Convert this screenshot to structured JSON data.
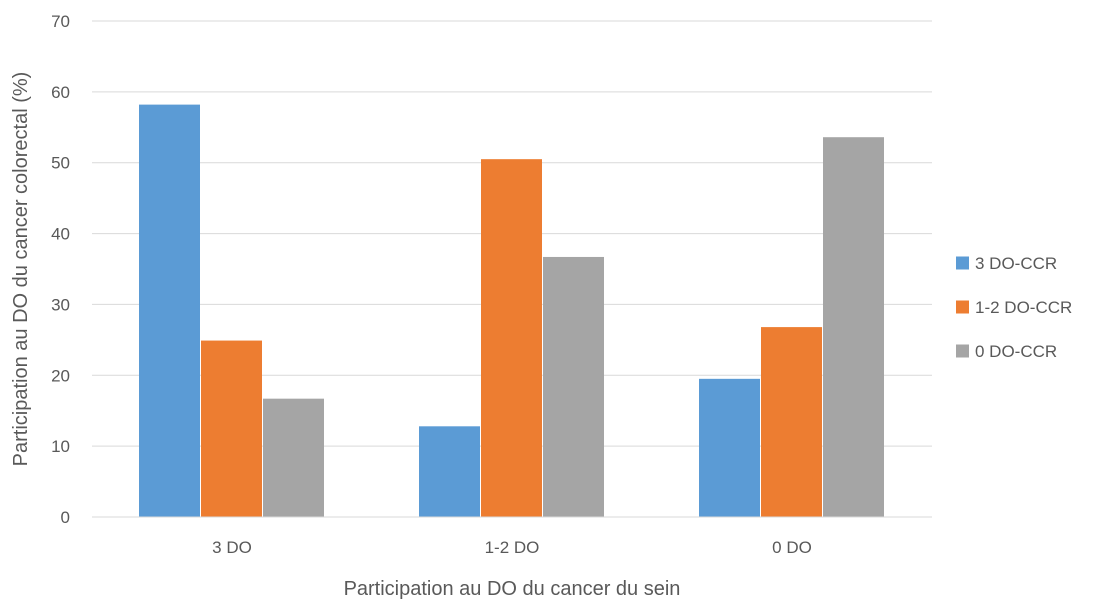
{
  "chart_data": {
    "type": "bar",
    "title": "",
    "xlabel": "Participation au DO du cancer du sein",
    "ylabel": "Participation au DO du cancer colorectal (%)",
    "categories": [
      "3 DO",
      "1-2 DO",
      "0 DO"
    ],
    "series": [
      {
        "name": "3 DO-CCR",
        "color": "#5b9bd5",
        "values": [
          58.2,
          12.8,
          19.5
        ]
      },
      {
        "name": "1-2 DO-CCR",
        "color": "#ed7d31",
        "values": [
          24.9,
          50.5,
          26.8
        ]
      },
      {
        "name": "0 DO-CCR",
        "color": "#a5a5a5",
        "values": [
          16.7,
          36.7,
          53.6
        ]
      }
    ],
    "ylim": [
      0,
      70
    ],
    "yticks": [
      0,
      10,
      20,
      30,
      40,
      50,
      60,
      70
    ],
    "grid": true,
    "legend": "right"
  }
}
